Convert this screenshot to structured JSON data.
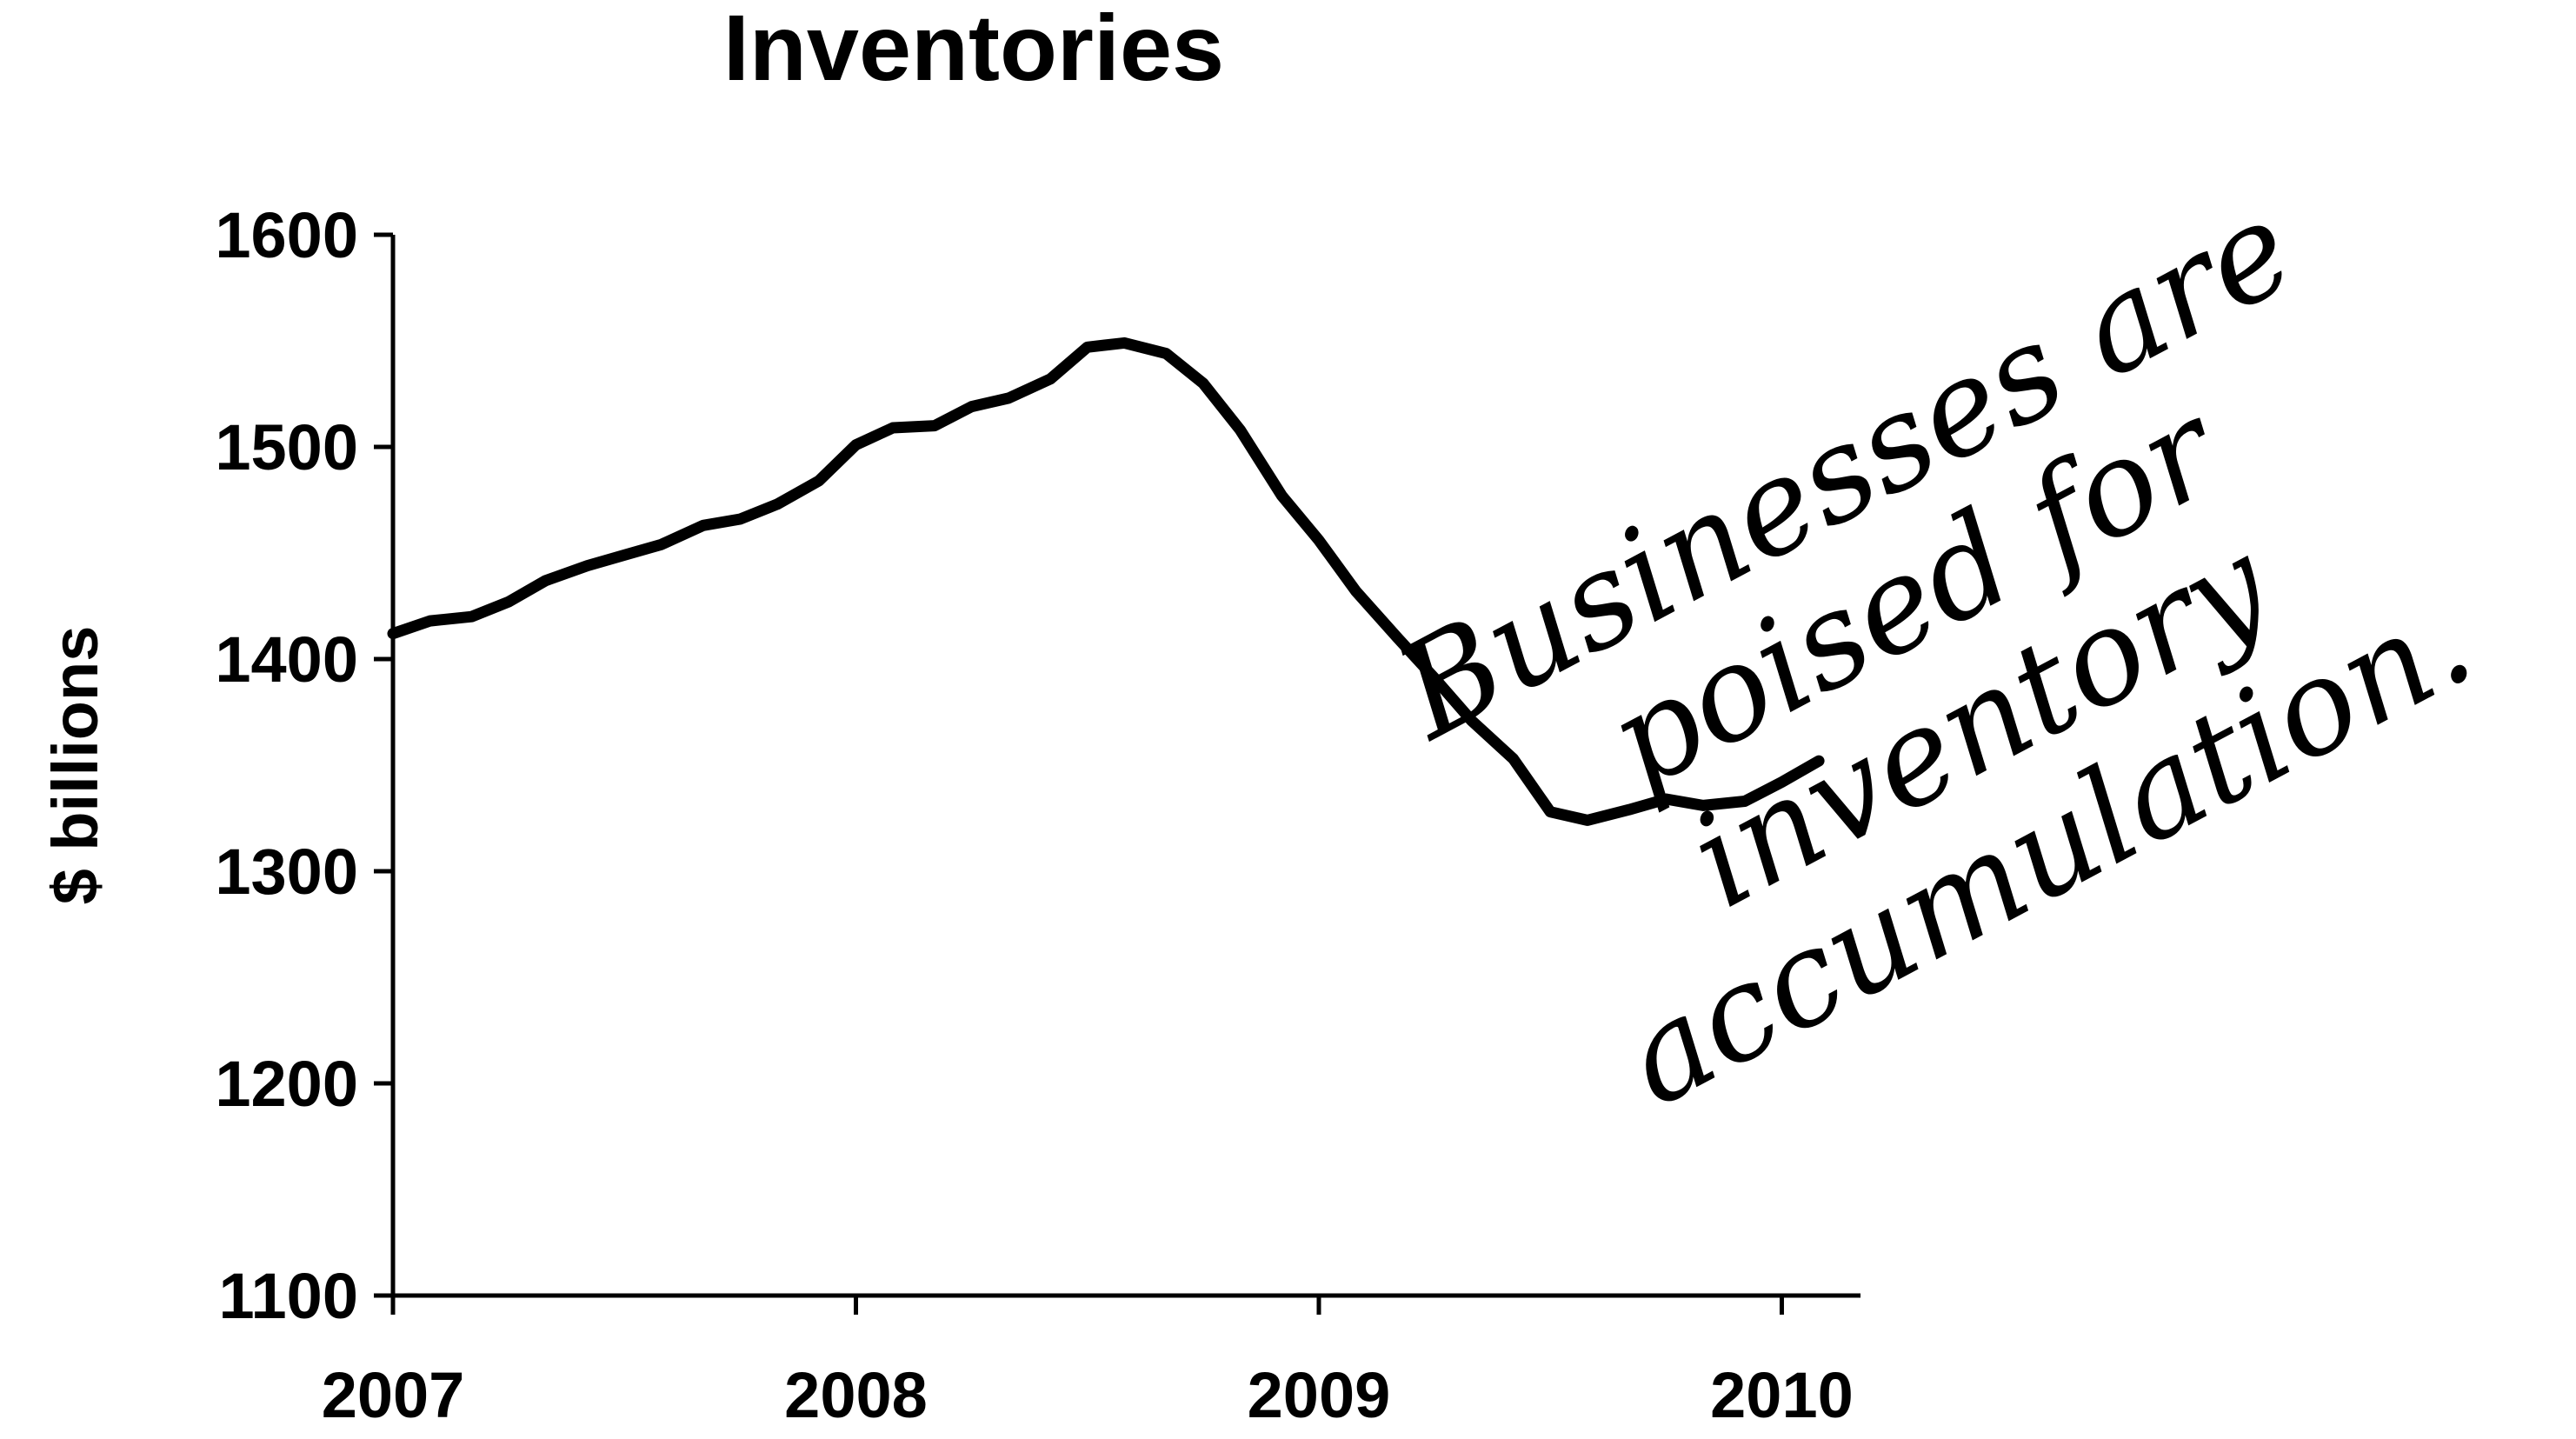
{
  "chart_data": {
    "type": "line",
    "title": "Inventories",
    "xlabel": "",
    "ylabel": "$ billions",
    "xlim": [
      2007.0,
      2010.17
    ],
    "ylim": [
      1100,
      1600
    ],
    "yticks": [
      1100,
      1200,
      1300,
      1400,
      1500,
      1600
    ],
    "xticks": [
      2007,
      2008,
      2009,
      2010
    ],
    "xtick_labels": [
      "2007",
      "2008",
      "2009",
      "2010"
    ],
    "grid": false,
    "legend": "none",
    "line_color": "#000000",
    "series": [
      {
        "x": [
          2007.0,
          2007.08,
          2007.17,
          2007.25,
          2007.33,
          2007.42,
          2007.5,
          2007.58,
          2007.67,
          2007.75,
          2007.83,
          2007.92,
          2008.0,
          2008.08,
          2008.17,
          2008.25,
          2008.33,
          2008.42,
          2008.5,
          2008.58,
          2008.67,
          2008.75,
          2008.83,
          2008.92,
          2009.0,
          2009.08,
          2009.17,
          2009.25,
          2009.33,
          2009.42,
          2009.5,
          2009.58,
          2009.67,
          2009.75,
          2009.83,
          2009.92,
          2010.0,
          2010.08
        ],
        "values": [
          1412,
          1418,
          1420,
          1427,
          1437,
          1444,
          1449,
          1454,
          1463,
          1466,
          1473,
          1484,
          1501,
          1509,
          1510,
          1519,
          1523,
          1532,
          1547,
          1549,
          1544,
          1530,
          1508,
          1477,
          1456,
          1432,
          1410,
          1391,
          1371,
          1353,
          1328,
          1324,
          1329,
          1334,
          1331,
          1333,
          1342,
          1352
        ]
      }
    ],
    "annotations": [
      "Businesses are",
      "poised for",
      "inventory",
      "accumulation."
    ]
  }
}
